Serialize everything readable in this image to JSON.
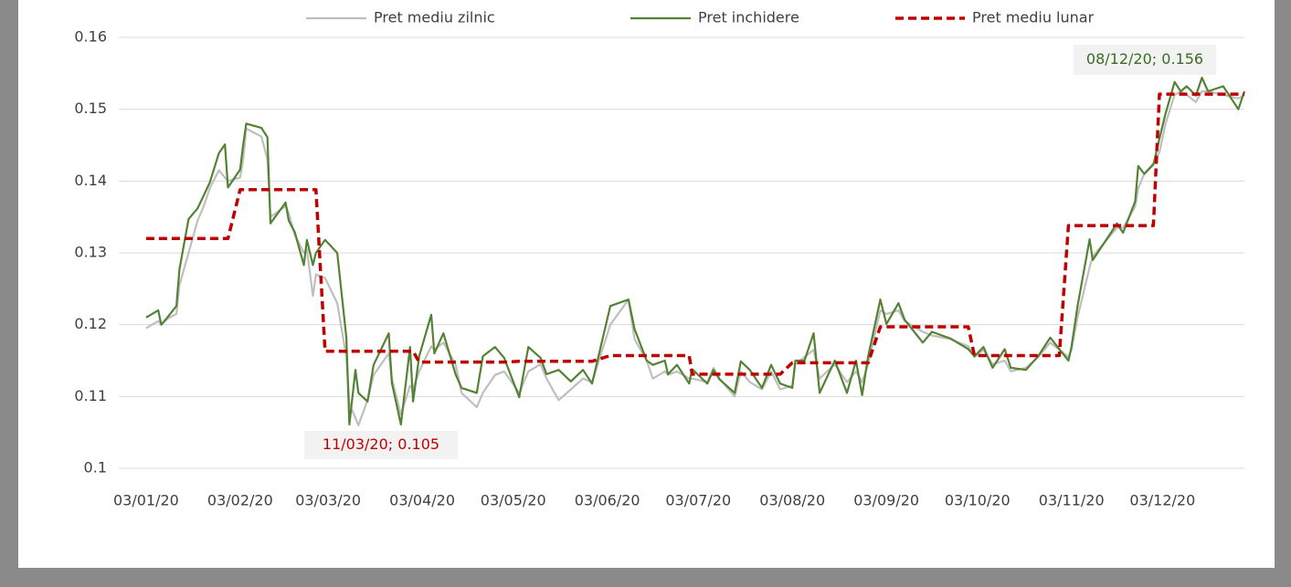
{
  "chart_data": {
    "type": "line",
    "x": [
      "2020-01-03",
      "2020-01-07",
      "2020-01-08",
      "2020-01-10",
      "2020-01-13",
      "2020-01-14",
      "2020-01-17",
      "2020-01-20",
      "2020-01-22",
      "2020-01-24",
      "2020-01-27",
      "2020-01-29",
      "2020-01-30",
      "2020-02-03",
      "2020-02-04",
      "2020-02-05",
      "2020-02-10",
      "2020-02-12",
      "2020-02-13",
      "2020-02-18",
      "2020-02-19",
      "2020-02-21",
      "2020-02-24",
      "2020-02-25",
      "2020-02-27",
      "2020-02-28",
      "2020-03-02",
      "2020-03-06",
      "2020-03-09",
      "2020-03-10",
      "2020-03-12",
      "2020-03-13",
      "2020-03-16",
      "2020-03-18",
      "2020-03-23",
      "2020-03-24",
      "2020-03-27",
      "2020-03-30",
      "2020-03-31",
      "2020-04-02",
      "2020-04-06",
      "2020-04-07",
      "2020-04-10",
      "2020-04-14",
      "2020-04-16",
      "2020-04-21",
      "2020-04-23",
      "2020-04-27",
      "2020-04-30",
      "2020-05-05",
      "2020-05-08",
      "2020-05-12",
      "2020-05-14",
      "2020-05-18",
      "2020-05-22",
      "2020-05-26",
      "2020-05-29",
      "2020-06-04",
      "2020-06-10",
      "2020-06-12",
      "2020-06-16",
      "2020-06-18",
      "2020-06-22",
      "2020-06-23",
      "2020-06-26",
      "2020-06-30",
      "2020-07-01",
      "2020-07-06",
      "2020-07-08",
      "2020-07-10",
      "2020-07-15",
      "2020-07-17",
      "2020-07-20",
      "2020-07-24",
      "2020-07-27",
      "2020-07-30",
      "2020-08-03",
      "2020-08-04",
      "2020-08-07",
      "2020-08-10",
      "2020-08-12",
      "2020-08-17",
      "2020-08-21",
      "2020-08-24",
      "2020-08-26",
      "2020-08-28",
      "2020-09-01",
      "2020-09-03",
      "2020-09-07",
      "2020-09-09",
      "2020-09-15",
      "2020-09-18",
      "2020-09-24",
      "2020-09-30",
      "2020-10-02",
      "2020-10-05",
      "2020-10-08",
      "2020-10-12",
      "2020-10-14",
      "2020-10-19",
      "2020-10-23",
      "2020-10-27",
      "2020-10-30",
      "2020-11-02",
      "2020-11-03",
      "2020-11-05",
      "2020-11-09",
      "2020-11-10",
      "2020-11-16",
      "2020-11-18",
      "2020-11-20",
      "2020-11-24",
      "2020-11-25",
      "2020-11-27",
      "2020-11-30",
      "2020-12-02",
      "2020-12-04",
      "2020-12-07",
      "2020-12-09",
      "2020-12-11",
      "2020-12-14",
      "2020-12-16",
      "2020-12-18",
      "2020-12-23",
      "2020-12-28",
      "2020-12-30"
    ],
    "series": [
      {
        "name": "Pret mediu zilnic",
        "color": "#bfbfbf",
        "style": "solid",
        "values": [
          0.1195,
          0.1205,
          0.12,
          0.1208,
          0.1215,
          0.1255,
          0.13,
          0.1345,
          0.1365,
          0.139,
          0.1415,
          0.1405,
          0.14,
          0.1405,
          0.143,
          0.1473,
          0.1462,
          0.143,
          0.135,
          0.1365,
          0.1355,
          0.1325,
          0.13,
          0.1305,
          0.124,
          0.127,
          0.1265,
          0.123,
          0.1155,
          0.109,
          0.107,
          0.106,
          0.1095,
          0.113,
          0.116,
          0.1125,
          0.1075,
          0.1115,
          0.111,
          0.1135,
          0.117,
          0.1165,
          0.1175,
          0.1145,
          0.1105,
          0.1085,
          0.1105,
          0.113,
          0.1135,
          0.1105,
          0.1135,
          0.1145,
          0.1125,
          0.1095,
          0.111,
          0.1125,
          0.112,
          0.12,
          0.1235,
          0.118,
          0.115,
          0.1125,
          0.1135,
          0.113,
          0.1135,
          0.1125,
          0.1125,
          0.112,
          0.114,
          0.1125,
          0.11,
          0.1135,
          0.112,
          0.111,
          0.1135,
          0.111,
          0.1115,
          0.1145,
          0.1155,
          0.1165,
          0.1125,
          0.1145,
          0.112,
          0.1135,
          0.112,
          0.1145,
          0.122,
          0.1215,
          0.122,
          0.1205,
          0.119,
          0.1185,
          0.118,
          0.117,
          0.1155,
          0.1165,
          0.1145,
          0.115,
          0.1135,
          0.114,
          0.1155,
          0.1175,
          0.1165,
          0.1155,
          0.1165,
          0.121,
          0.128,
          0.1295,
          0.1325,
          0.1335,
          0.1335,
          0.1365,
          0.139,
          0.141,
          0.1425,
          0.144,
          0.148,
          0.152,
          0.1525,
          0.152,
          0.151,
          0.1525,
          0.1525,
          0.152,
          0.1515,
          0.152
        ]
      },
      {
        "name": "Pret inchidere",
        "color": "#548235",
        "style": "solid",
        "values": [
          0.121,
          0.122,
          0.12,
          0.121,
          0.1226,
          0.1277,
          0.1347,
          0.1362,
          0.138,
          0.1398,
          0.1439,
          0.1451,
          0.1391,
          0.1416,
          0.1451,
          0.148,
          0.1474,
          0.1461,
          0.1341,
          0.137,
          0.1345,
          0.1329,
          0.1283,
          0.1318,
          0.1283,
          0.13,
          0.1318,
          0.13,
          0.1182,
          0.1061,
          0.1137,
          0.1105,
          0.1093,
          0.1144,
          0.1188,
          0.1119,
          0.1061,
          0.1169,
          0.1093,
          0.1156,
          0.1214,
          0.116,
          0.1188,
          0.1131,
          0.1112,
          0.1105,
          0.1156,
          0.1169,
          0.1154,
          0.1099,
          0.1169,
          0.1154,
          0.1131,
          0.1137,
          0.1121,
          0.1137,
          0.1118,
          0.1226,
          0.1235,
          0.1194,
          0.115,
          0.1144,
          0.115,
          0.1131,
          0.1144,
          0.1118,
          0.1138,
          0.1118,
          0.1137,
          0.1124,
          0.1105,
          0.1149,
          0.1137,
          0.1112,
          0.1144,
          0.1118,
          0.1112,
          0.115,
          0.115,
          0.1188,
          0.1105,
          0.115,
          0.1105,
          0.115,
          0.1102,
          0.1156,
          0.1235,
          0.1201,
          0.123,
          0.1207,
          0.1175,
          0.119,
          0.1181,
          0.1166,
          0.1156,
          0.1169,
          0.114,
          0.1166,
          0.114,
          0.1137,
          0.1156,
          0.1182,
          0.1166,
          0.115,
          0.1169,
          0.1226,
          0.1319,
          0.129,
          0.1328,
          0.1341,
          0.1328,
          0.1372,
          0.1421,
          0.141,
          0.1423,
          0.1459,
          0.1494,
          0.1538,
          0.1525,
          0.1532,
          0.1519,
          0.1544,
          0.1525,
          0.1532,
          0.15,
          0.1525
        ]
      },
      {
        "name": "Pret mediu lunar",
        "color": "#c00000",
        "style": "dashed",
        "values": [
          0.132,
          0.132,
          0.132,
          0.132,
          0.132,
          0.132,
          0.132,
          0.132,
          0.132,
          0.132,
          0.132,
          0.132,
          0.132,
          0.1388,
          0.1388,
          0.1388,
          0.1388,
          0.1388,
          0.1388,
          0.1388,
          0.1388,
          0.1388,
          0.1388,
          0.1388,
          0.1388,
          0.1388,
          0.1163,
          0.1163,
          0.1163,
          0.1163,
          0.1163,
          0.1163,
          0.1163,
          0.1163,
          0.1163,
          0.1163,
          0.1163,
          0.1163,
          0.1163,
          0.1148,
          0.1148,
          0.1148,
          0.1148,
          0.1148,
          0.1148,
          0.1148,
          0.1148,
          0.1148,
          0.1148,
          0.1149,
          0.1149,
          0.1149,
          0.1149,
          0.1149,
          0.1149,
          0.1149,
          0.1149,
          0.1157,
          0.1157,
          0.1157,
          0.1157,
          0.1157,
          0.1157,
          0.1157,
          0.1157,
          0.1157,
          0.1131,
          0.1131,
          0.1131,
          0.1131,
          0.1131,
          0.1131,
          0.1131,
          0.1131,
          0.1131,
          0.1131,
          0.1147,
          0.1147,
          0.1147,
          0.1147,
          0.1147,
          0.1147,
          0.1147,
          0.1147,
          0.1147,
          0.1147,
          0.1197,
          0.1197,
          0.1197,
          0.1197,
          0.1197,
          0.1197,
          0.1197,
          0.1197,
          0.1157,
          0.1157,
          0.1157,
          0.1157,
          0.1157,
          0.1157,
          0.1157,
          0.1157,
          0.1157,
          0.1338,
          0.1338,
          0.1338,
          0.1338,
          0.1338,
          0.1338,
          0.1338,
          0.1338,
          0.1338,
          0.1338,
          0.1338,
          0.1338,
          0.1521,
          0.1521,
          0.1521,
          0.1521,
          0.1521,
          0.1521,
          0.1521,
          0.1521,
          0.1521,
          0.1521,
          0.1521
        ]
      }
    ],
    "xlim": [
      "2019-12-25",
      "2020-12-30"
    ],
    "xticks": [
      {
        "value": "2020-01-03",
        "label": "03/01/20"
      },
      {
        "value": "2020-02-03",
        "label": "03/02/20"
      },
      {
        "value": "2020-03-03",
        "label": "03/03/20"
      },
      {
        "value": "2020-04-03",
        "label": "03/04/20"
      },
      {
        "value": "2020-05-03",
        "label": "03/05/20"
      },
      {
        "value": "2020-06-03",
        "label": "03/06/20"
      },
      {
        "value": "2020-07-03",
        "label": "03/07/20"
      },
      {
        "value": "2020-08-03",
        "label": "03/08/20"
      },
      {
        "value": "2020-09-03",
        "label": "03/09/20"
      },
      {
        "value": "2020-10-03",
        "label": "03/10/20"
      },
      {
        "value": "2020-11-03",
        "label": "03/11/20"
      },
      {
        "value": "2020-12-03",
        "label": "03/12/20"
      }
    ],
    "ylim": [
      0.1,
      0.16
    ],
    "yticks": [
      0.1,
      0.11,
      0.12,
      0.13,
      0.14,
      0.15,
      0.16
    ],
    "grid": true,
    "legend": "top",
    "annotations": [
      {
        "text": "11/03/20; 0.105",
        "color": "#c00000"
      },
      {
        "text": "08/12/20; 0.156",
        "color": "#3b6b27"
      }
    ]
  }
}
